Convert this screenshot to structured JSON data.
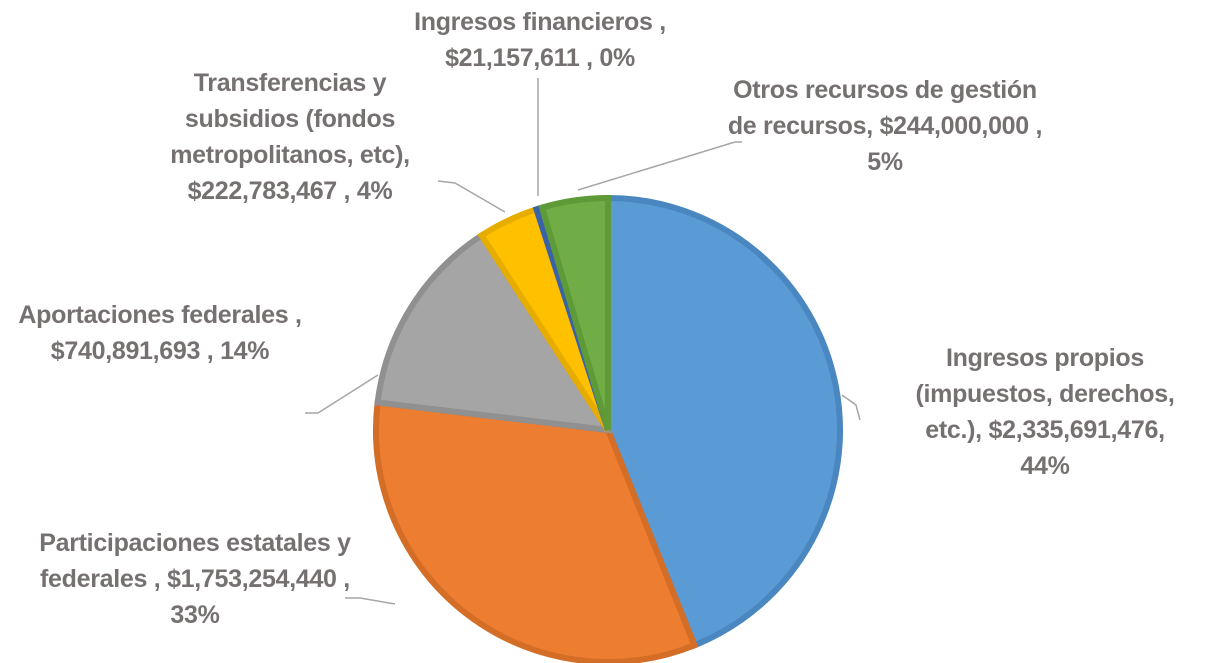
{
  "chart_data": {
    "type": "pie",
    "categories": [
      "Ingresos propios (impuestos, derechos, etc.),",
      "Participaciones estatales y federales ,",
      "Aportaciones federales ,",
      "Transferencias y subsidios (fondos metropolitanos, etc),",
      "Ingresos financieros ,",
      "Otros recursos de gestión de recursos,"
    ],
    "values": [
      2335691476,
      1753254440,
      740891693,
      222783467,
      21157611,
      244000000
    ],
    "value_labels": [
      "$2,335,691,476,",
      "$1,753,254,440 ,",
      "$740,891,693 ,",
      "$222,783,467 ,",
      "$21,157,611 ,",
      "$244,000,000 ,"
    ],
    "percent_labels": [
      "44%",
      "33%",
      "14%",
      "4%",
      "0%",
      "5%"
    ],
    "colors": [
      "#5b9bd5",
      "#ed7d31",
      "#a5a5a5",
      "#ffc000",
      "#4472c4",
      "#70ad47"
    ],
    "edge_colors": [
      "#4a86c0",
      "#d46d25",
      "#909090",
      "#e6ad00",
      "#3a62a8",
      "#5e9a38"
    ]
  }
}
